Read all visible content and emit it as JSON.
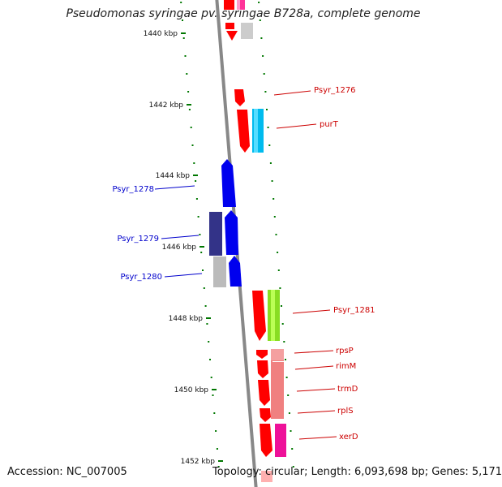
{
  "title": "Pseudomonas syringae pv. syringae B728a, complete genome",
  "footer": {
    "accession": "Accession: NC_007005",
    "summary": "Topology: circular; Length: 6,093,698 bp; Genes: 5,171"
  },
  "colors": {
    "forward_label": "#cc0000",
    "reverse_label": "#0000cc",
    "tick": "#007700",
    "backbone": "#888888"
  },
  "ticks": [
    "1440 kbp",
    "1442 kbp",
    "1444 kbp",
    "1446 kbp",
    "1448 kbp",
    "1450 kbp",
    "1452 kbp"
  ],
  "genes": [
    {
      "label": "Psyr_1276",
      "strand": "forward",
      "color": "#ff0000"
    },
    {
      "label": "purT",
      "strand": "forward",
      "color": "#ff0000"
    },
    {
      "label": "Psyr_1278",
      "strand": "reverse",
      "color": "#0000ee"
    },
    {
      "label": "Psyr_1279",
      "strand": "reverse",
      "color": "#0000ee"
    },
    {
      "label": "Psyr_1280",
      "strand": "reverse",
      "color": "#0000ee"
    },
    {
      "label": "Psyr_1281",
      "strand": "forward",
      "color": "#ff0000"
    },
    {
      "label": "rpsP",
      "strand": "forward",
      "color": "#ff0000"
    },
    {
      "label": "rimM",
      "strand": "forward",
      "color": "#ff0000"
    },
    {
      "label": "trmD",
      "strand": "forward",
      "color": "#ff0000"
    },
    {
      "label": "rplS",
      "strand": "forward",
      "color": "#ff0000"
    },
    {
      "label": "xerD",
      "strand": "forward",
      "color": "#ff0000"
    }
  ]
}
